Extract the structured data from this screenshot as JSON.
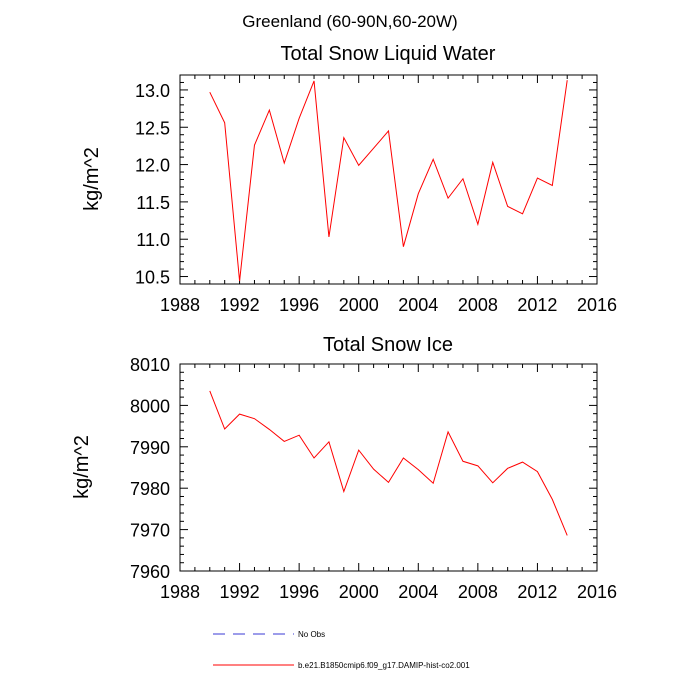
{
  "figure": {
    "suptitle": "Greenland (60-90N,60-20W)"
  },
  "legend": [
    {
      "label": "No Obs",
      "color": "#3a3ad6",
      "style": "dashed"
    },
    {
      "label": "b.e21.B1850cmip6.f09_g17.DAMIP-hist-co2.001",
      "color": "#ff0000",
      "style": "solid"
    }
  ],
  "chart_data": [
    {
      "type": "line",
      "title": "Total Snow Liquid Water",
      "xlabel": "",
      "ylabel": "kg/m^2",
      "xlim": [
        1988,
        2016
      ],
      "ylim": [
        10.4,
        13.2
      ],
      "xticks": [
        1988,
        1992,
        1996,
        2000,
        2004,
        2008,
        2012,
        2016
      ],
      "yticks": [
        10.5,
        11.0,
        11.5,
        12.0,
        12.5,
        13.0
      ],
      "ytick_labels": [
        "10.5",
        "11.0",
        "11.5",
        "12.0",
        "12.5",
        "13.0"
      ],
      "grid": false,
      "series": [
        {
          "name": "b.e21.B1850cmip6.f09_g17.DAMIP-hist-co2.001",
          "color": "#ff0000",
          "x": [
            1990,
            1991,
            1992,
            1993,
            1994,
            1995,
            1996,
            1997,
            1998,
            1999,
            2000,
            2001,
            2002,
            2003,
            2004,
            2005,
            2006,
            2007,
            2008,
            2009,
            2010,
            2011,
            2012,
            2013,
            2014
          ],
          "y": [
            12.97,
            12.56,
            10.44,
            12.26,
            12.73,
            12.02,
            12.62,
            13.12,
            11.03,
            12.36,
            11.99,
            12.22,
            12.45,
            10.9,
            11.61,
            12.07,
            11.55,
            11.81,
            11.2,
            12.03,
            11.44,
            11.34,
            11.82,
            11.72,
            13.13
          ]
        }
      ]
    },
    {
      "type": "line",
      "title": "Total Snow Ice",
      "xlabel": "",
      "ylabel": "kg/m^2",
      "xlim": [
        1988,
        2016
      ],
      "ylim": [
        7960,
        8010
      ],
      "xticks": [
        1988,
        1992,
        1996,
        2000,
        2004,
        2008,
        2012,
        2016
      ],
      "yticks": [
        7960,
        7970,
        7980,
        7990,
        8000,
        8010
      ],
      "ytick_labels": [
        "7960",
        "7970",
        "7980",
        "7990",
        "8000",
        "8010"
      ],
      "grid": false,
      "series": [
        {
          "name": "b.e21.B1850cmip6.f09_g17.DAMIP-hist-co2.001",
          "color": "#ff0000",
          "x": [
            1990,
            1991,
            1992,
            1993,
            1994,
            1995,
            1996,
            1997,
            1998,
            1999,
            2000,
            2001,
            2002,
            2003,
            2004,
            2005,
            2006,
            2007,
            2008,
            2009,
            2010,
            2011,
            2012,
            2013,
            2014
          ],
          "y": [
            8003.5,
            7994.3,
            7997.9,
            7996.8,
            7994.2,
            7991.3,
            7992.8,
            7987.3,
            7991.2,
            7979.2,
            7989.2,
            7984.6,
            7981.4,
            7987.3,
            7984.5,
            7981.2,
            7993.6,
            7986.5,
            7985.4,
            7981.3,
            7984.8,
            7986.3,
            7984.0,
            7977.3,
            7968.6
          ]
        }
      ]
    }
  ]
}
